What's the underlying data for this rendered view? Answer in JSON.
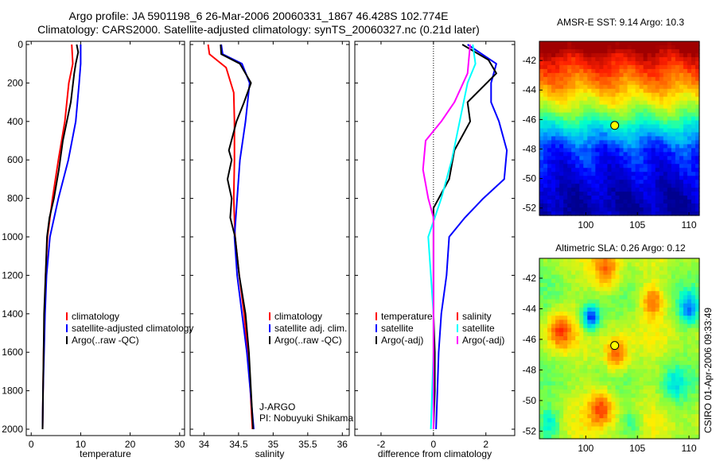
{
  "figure": {
    "title_line1": "Argo profile: JA 5901198_6 26-Mar-2006 20060331_1867 46.428S 102.774E",
    "title_line2": "Climatology: CARS2000. Satellite-adjusted climatology: synTS_20060327.nc (0.21d later)",
    "side_credit": "CSIRO 01-Apr-2006 09:33:49"
  },
  "colors": {
    "climatology": "#ff0000",
    "satellite": "#0000ff",
    "argo": "#000000",
    "cyan": "#00ffff",
    "magenta": "#ff00ff"
  },
  "chart_data": [
    {
      "type": "line",
      "xlabel": "temperature",
      "ylabel": "",
      "xlim": [
        -1,
        31
      ],
      "ylim": [
        2050,
        0
      ],
      "xticks": [
        0,
        10,
        20,
        30
      ],
      "yticks": [
        0,
        200,
        400,
        600,
        800,
        1000,
        1200,
        1400,
        1600,
        1800,
        2000
      ],
      "legend": [
        "climatology",
        "satellite-adjusted climatology",
        "Argo(..raw -QC)"
      ],
      "series": [
        {
          "name": "climatology",
          "color": "#ff0000",
          "points": [
            [
              8.2,
              0
            ],
            [
              8.4,
              100
            ],
            [
              7.6,
              200
            ],
            [
              6.8,
              400
            ],
            [
              5.5,
              600
            ],
            [
              4.3,
              800
            ],
            [
              3.3,
              1000
            ],
            [
              2.9,
              1200
            ],
            [
              2.7,
              1400
            ],
            [
              2.5,
              1600
            ],
            [
              2.4,
              1800
            ],
            [
              2.3,
              2000
            ]
          ]
        },
        {
          "name": "satellite-adjusted climatology",
          "color": "#0000ff",
          "points": [
            [
              10.0,
              0
            ],
            [
              10.0,
              100
            ],
            [
              9.7,
              200
            ],
            [
              9.0,
              400
            ],
            [
              7.5,
              600
            ],
            [
              5.5,
              800
            ],
            [
              3.8,
              1000
            ],
            [
              3.1,
              1200
            ],
            [
              2.8,
              1400
            ],
            [
              2.6,
              1600
            ],
            [
              2.4,
              1800
            ],
            [
              2.3,
              2000
            ]
          ]
        },
        {
          "name": "Argo(..raw -QC)",
          "color": "#000000",
          "points": [
            [
              9.2,
              0
            ],
            [
              9.5,
              40
            ],
            [
              9.0,
              100
            ],
            [
              8.7,
              150
            ],
            [
              8.0,
              300
            ],
            [
              7.2,
              400
            ],
            [
              6.4,
              500
            ],
            [
              5.6,
              650
            ],
            [
              4.6,
              800
            ],
            [
              3.7,
              900
            ],
            [
              3.2,
              1000
            ],
            [
              2.9,
              1200
            ],
            [
              2.6,
              1400
            ],
            [
              2.5,
              1600
            ],
            [
              2.4,
              1800
            ],
            [
              2.3,
              2000
            ]
          ]
        }
      ]
    },
    {
      "type": "line",
      "xlabel": "salinity",
      "ylabel": "",
      "xlim": [
        33.8,
        36.1
      ],
      "ylim": [
        2050,
        0
      ],
      "xticks": [
        34,
        34.5,
        35,
        35.5,
        36
      ],
      "yticks": [
        0,
        200,
        400,
        600,
        800,
        1000,
        1200,
        1400,
        1600,
        1800,
        2000
      ],
      "legend": [
        "climatology",
        "satellite adj. clim.",
        "Argo(..raw -QC)"
      ],
      "annotation_lines": [
        "J-ARGO",
        "PI: Nobuyuki Shikama"
      ],
      "series": [
        {
          "name": "climatology",
          "color": "#ff0000",
          "points": [
            [
              34.06,
              0
            ],
            [
              34.08,
              50
            ],
            [
              34.32,
              120
            ],
            [
              34.43,
              250
            ],
            [
              34.44,
              400
            ],
            [
              34.44,
              600
            ],
            [
              34.43,
              800
            ],
            [
              34.45,
              1000
            ],
            [
              34.51,
              1200
            ],
            [
              34.58,
              1400
            ],
            [
              34.63,
              1600
            ],
            [
              34.67,
              1800
            ],
            [
              34.7,
              2000
            ]
          ]
        },
        {
          "name": "satellite adj. clim.",
          "color": "#0000ff",
          "points": [
            [
              34.25,
              0
            ],
            [
              34.27,
              50
            ],
            [
              34.55,
              100
            ],
            [
              34.66,
              200
            ],
            [
              34.6,
              400
            ],
            [
              34.52,
              600
            ],
            [
              34.48,
              800
            ],
            [
              34.44,
              1000
            ],
            [
              34.48,
              1200
            ],
            [
              34.55,
              1400
            ],
            [
              34.62,
              1600
            ],
            [
              34.67,
              1800
            ],
            [
              34.72,
              2000
            ]
          ]
        },
        {
          "name": "Argo(..raw -QC)",
          "color": "#000000",
          "points": [
            [
              34.24,
              0
            ],
            [
              34.25,
              50
            ],
            [
              34.52,
              100
            ],
            [
              34.68,
              200
            ],
            [
              34.58,
              300
            ],
            [
              34.47,
              400
            ],
            [
              34.36,
              550
            ],
            [
              34.4,
              600
            ],
            [
              34.34,
              700
            ],
            [
              34.4,
              800
            ],
            [
              34.38,
              900
            ],
            [
              34.45,
              1000
            ],
            [
              34.51,
              1200
            ],
            [
              34.6,
              1400
            ],
            [
              34.65,
              1600
            ],
            [
              34.68,
              1800
            ],
            [
              34.71,
              2000
            ]
          ]
        }
      ]
    },
    {
      "type": "line",
      "xlabel": "difference from climatology",
      "ylabel": "",
      "xlim": [
        -3,
        3.1
      ],
      "ylim": [
        2050,
        0
      ],
      "xticks": [
        -2,
        0,
        2
      ],
      "yticks": [
        0,
        200,
        400,
        600,
        800,
        1000,
        1200,
        1400,
        1600,
        1800,
        2000
      ],
      "legend_temperature": [
        "temperature",
        "satellite",
        "Argo(-adj)"
      ],
      "legend_salinity": [
        "salinity",
        "satellite",
        "Argo(-adj)"
      ],
      "zero_line": true,
      "series": [
        {
          "name": "temperature satellite",
          "color": "#0000ff",
          "points": [
            [
              1.3,
              0
            ],
            [
              2.4,
              100
            ],
            [
              2.2,
              200
            ],
            [
              2.2,
              300
            ],
            [
              2.5,
              400
            ],
            [
              2.8,
              550
            ],
            [
              2.7,
              700
            ],
            [
              1.9,
              800
            ],
            [
              1.2,
              900
            ],
            [
              0.6,
              1000
            ],
            [
              0.5,
              1200
            ],
            [
              0.3,
              1400
            ],
            [
              0.2,
              1600
            ],
            [
              0.15,
              1800
            ],
            [
              0.1,
              2000
            ]
          ]
        },
        {
          "name": "temperature Argo(-adj)",
          "color": "#000000",
          "points": [
            [
              1.1,
              0
            ],
            [
              2.1,
              80
            ],
            [
              2.4,
              150
            ],
            [
              1.3,
              300
            ],
            [
              1.4,
              400
            ],
            [
              0.8,
              550
            ],
            [
              0.6,
              700
            ],
            [
              0.0,
              850
            ],
            [
              0.0,
              1000
            ],
            [
              0.0,
              1200
            ],
            [
              0.0,
              1400
            ],
            [
              0.05,
              1600
            ],
            [
              0.05,
              1800
            ],
            [
              0.0,
              2000
            ]
          ]
        },
        {
          "name": "salinity satellite",
          "color": "#00ffff",
          "points": [
            [
              1.5,
              0
            ],
            [
              1.6,
              100
            ],
            [
              1.3,
              200
            ],
            [
              1.0,
              400
            ],
            [
              0.7,
              600
            ],
            [
              0.3,
              800
            ],
            [
              -0.2,
              1000
            ],
            [
              -0.1,
              1200
            ],
            [
              0.0,
              1400
            ],
            [
              0.0,
              1600
            ],
            [
              -0.05,
              1800
            ],
            [
              -0.1,
              2000
            ]
          ]
        },
        {
          "name": "salinity Argo(-adj)",
          "color": "#ff00ff",
          "points": [
            [
              1.4,
              0
            ],
            [
              1.3,
              150
            ],
            [
              0.8,
              300
            ],
            [
              0.3,
              400
            ],
            [
              -0.3,
              500
            ],
            [
              -0.4,
              650
            ],
            [
              -0.2,
              800
            ],
            [
              0.0,
              900
            ],
            [
              0.0,
              1000
            ],
            [
              0.0,
              1200
            ],
            [
              0.0,
              1400
            ],
            [
              0.0,
              1600
            ],
            [
              0.0,
              1800
            ],
            [
              0.0,
              2000
            ]
          ]
        }
      ]
    },
    {
      "type": "heatmap",
      "title": "AMSR-E SST: 9.14 Argo: 10.3",
      "xticks": [
        100,
        105,
        110
      ],
      "yticks": [
        -42,
        -44,
        -46,
        -48,
        -50,
        -52
      ],
      "xlim": [
        95.5,
        111
      ],
      "ylim": [
        -52.5,
        -40.7
      ],
      "argo_marker": {
        "lon": 102.8,
        "lat": -46.4
      },
      "colorscale": [
        "#00008f",
        "#0000ff",
        "#00aaff",
        "#00ffcc",
        "#80ff40",
        "#ffee00",
        "#ff8800",
        "#ff2000",
        "#a00000"
      ],
      "rows_north_to_south": [
        {
          "lat": -41,
          "level": 8.3
        },
        {
          "lat": -42,
          "level": 7.2
        },
        {
          "lat": -43,
          "level": 6.4
        },
        {
          "lat": -44,
          "level": 5.6
        },
        {
          "lat": -45,
          "level": 4.6
        },
        {
          "lat": -46,
          "level": 3.4
        },
        {
          "lat": -47,
          "level": 2.2
        },
        {
          "lat": -48,
          "level": 1.3
        },
        {
          "lat": -49,
          "level": 1.0
        },
        {
          "lat": -50,
          "level": 0.7
        },
        {
          "lat": -51,
          "level": 0.4
        },
        {
          "lat": -52,
          "level": 0.2
        }
      ]
    },
    {
      "type": "heatmap",
      "title": "Altimetric SLA: 0.26 Argo: 0.12",
      "xticks": [
        100,
        105,
        110
      ],
      "yticks": [
        -42,
        -44,
        -46,
        -48,
        -50,
        -52
      ],
      "xlim": [
        95.5,
        111
      ],
      "ylim": [
        -52.5,
        -40.7
      ],
      "argo_marker": {
        "lon": 102.8,
        "lat": -46.4
      },
      "colorscale": [
        "#00008f",
        "#0000ff",
        "#00aaff",
        "#00ffcc",
        "#80ff40",
        "#ffee00",
        "#ff8800",
        "#ff2000",
        "#a00000"
      ],
      "background_level": 4.3,
      "features": [
        {
          "lon": 97.5,
          "lat": -45.5,
          "level": 6.5,
          "r": 1.2
        },
        {
          "lon": 102.0,
          "lat": -41.5,
          "level": 6.5,
          "r": 1.3
        },
        {
          "lon": 103.0,
          "lat": -47.0,
          "level": 6.6,
          "r": 1.1
        },
        {
          "lon": 106.5,
          "lat": -43.5,
          "level": 6.2,
          "r": 1.0
        },
        {
          "lon": 101.5,
          "lat": -50.5,
          "level": 6.6,
          "r": 1.2
        },
        {
          "lon": 100.5,
          "lat": -44.6,
          "level": 1.1,
          "r": 0.9
        },
        {
          "lon": 110.0,
          "lat": -44.0,
          "level": 2.0,
          "r": 1.0
        },
        {
          "lon": 96.5,
          "lat": -51.5,
          "level": 2.8,
          "r": 1.0
        },
        {
          "lon": 108.5,
          "lat": -49.0,
          "level": 3.0,
          "r": 1.2
        },
        {
          "lon": 104.5,
          "lat": -51.5,
          "level": 3.2,
          "r": 0.9
        }
      ]
    }
  ]
}
